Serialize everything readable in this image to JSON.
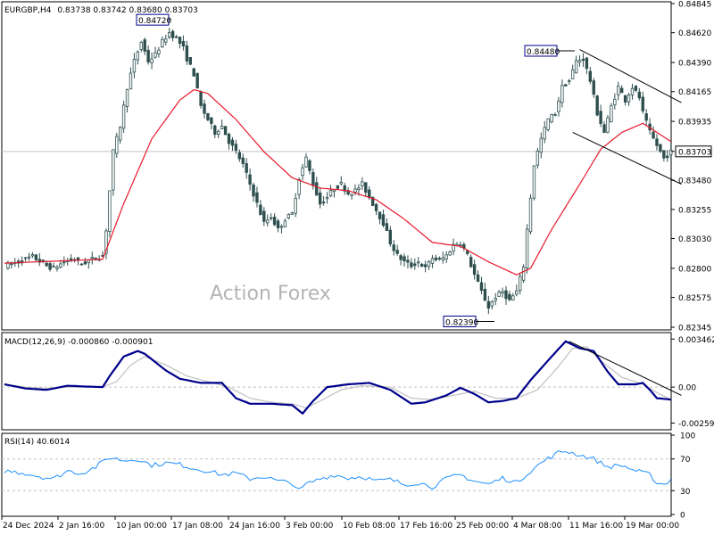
{
  "header": {
    "symbol": "EURGBP,H4",
    "ohlc": "0.83738 0.83742 0.83680 0.83703",
    "macd": "MACD(12,26,9) -0.000860 -0.000901",
    "rsi": "RSI(14) 40.6014"
  },
  "watermark": "Action Forex",
  "colors": {
    "candle": "#2f4f4f",
    "ma": "#e8182b",
    "macd_line": "#00008b",
    "signal_line": "#c0c0c0",
    "rsi_line": "#1e90ff",
    "trendline": "#000000",
    "grid_dashed": "#c0c0c0",
    "current_price_line": "#c0c0c0"
  },
  "annotations": [
    {
      "label": "0.84720",
      "price": 0.8472
    },
    {
      "label": "0.84480",
      "price": 0.8448
    },
    {
      "label": "0.82390",
      "price": 0.8239
    }
  ],
  "chart_data": [
    {
      "type": "candlestick",
      "title": "EURGBP,H4",
      "ylim": [
        0.82345,
        0.84845
      ],
      "y_ticks": [
        "0.84845",
        "0.84620",
        "0.84390",
        "0.84165",
        "0.83935",
        "0.83703",
        "0.83480",
        "0.83255",
        "0.83030",
        "0.82800",
        "0.82575",
        "0.82345"
      ],
      "current_price": 0.83703,
      "current_price_label": "0.83703",
      "x_ticks": [
        "24 Dec 2024",
        "2 Jan 16:00",
        "10 Jan 00:00",
        "17 Jan 08:00",
        "24 Jan 16:00",
        "3 Feb 00:00",
        "10 Feb 08:00",
        "17 Feb 16:00",
        "25 Feb 00:00",
        "4 Mar 08:00",
        "11 Mar 16:00",
        "19 Mar 00:00"
      ],
      "close_anchors": [
        [
          0,
          0.8282
        ],
        [
          4,
          0.8285
        ],
        [
          8,
          0.8289
        ],
        [
          12,
          0.8282
        ],
        [
          14,
          0.828
        ],
        [
          17,
          0.8285
        ],
        [
          20,
          0.8287
        ],
        [
          22,
          0.8283
        ],
        [
          24,
          0.8286
        ],
        [
          26,
          0.8288
        ],
        [
          28,
          0.829
        ],
        [
          29,
          0.831
        ],
        [
          31,
          0.837
        ],
        [
          33,
          0.839
        ],
        [
          35,
          0.842
        ],
        [
          37,
          0.844
        ],
        [
          39,
          0.8455
        ],
        [
          41,
          0.844
        ],
        [
          43,
          0.8445
        ],
        [
          45,
          0.8455
        ],
        [
          47,
          0.8462
        ],
        [
          49,
          0.8458
        ],
        [
          51,
          0.845
        ],
        [
          52,
          0.8442
        ],
        [
          54,
          0.843
        ],
        [
          56,
          0.8405
        ],
        [
          58,
          0.8395
        ],
        [
          60,
          0.8385
        ],
        [
          62,
          0.839
        ],
        [
          64,
          0.8378
        ],
        [
          66,
          0.837
        ],
        [
          68,
          0.836
        ],
        [
          70,
          0.8345
        ],
        [
          72,
          0.833
        ],
        [
          74,
          0.8315
        ],
        [
          76,
          0.832
        ],
        [
          78,
          0.831
        ],
        [
          80,
          0.8318
        ],
        [
          82,
          0.8322
        ],
        [
          84,
          0.835
        ],
        [
          86,
          0.8365
        ],
        [
          88,
          0.8345
        ],
        [
          90,
          0.833
        ],
        [
          92,
          0.8335
        ],
        [
          94,
          0.8342
        ],
        [
          96,
          0.8345
        ],
        [
          98,
          0.8338
        ],
        [
          100,
          0.834
        ],
        [
          102,
          0.8345
        ],
        [
          104,
          0.8335
        ],
        [
          106,
          0.8325
        ],
        [
          108,
          0.8315
        ],
        [
          110,
          0.83
        ],
        [
          112,
          0.829
        ],
        [
          114,
          0.8285
        ],
        [
          116,
          0.8282
        ],
        [
          118,
          0.8285
        ],
        [
          120,
          0.828
        ],
        [
          122,
          0.8288
        ],
        [
          124,
          0.8286
        ],
        [
          126,
          0.829
        ],
        [
          128,
          0.8298
        ],
        [
          130,
          0.83
        ],
        [
          132,
          0.829
        ],
        [
          134,
          0.8275
        ],
        [
          136,
          0.8262
        ],
        [
          138,
          0.825
        ],
        [
          140,
          0.8258
        ],
        [
          142,
          0.8262
        ],
        [
          144,
          0.8255
        ],
        [
          146,
          0.8262
        ],
        [
          148,
          0.8282
        ],
        [
          149,
          0.831
        ],
        [
          151,
          0.836
        ],
        [
          153,
          0.838
        ],
        [
          155,
          0.8395
        ],
        [
          157,
          0.84
        ],
        [
          159,
          0.842
        ],
        [
          161,
          0.8425
        ],
        [
          163,
          0.844
        ],
        [
          165,
          0.8442
        ],
        [
          167,
          0.8425
        ],
        [
          169,
          0.84
        ],
        [
          171,
          0.8385
        ],
        [
          173,
          0.8405
        ],
        [
          175,
          0.842
        ],
        [
          177,
          0.841
        ],
        [
          179,
          0.842
        ],
        [
          181,
          0.8412
        ],
        [
          182,
          0.84
        ],
        [
          184,
          0.8385
        ],
        [
          186,
          0.8375
        ],
        [
          187,
          0.837
        ],
        [
          188,
          0.8365
        ],
        [
          190,
          0.837
        ]
      ],
      "ma_anchors": [
        [
          0,
          0.8284
        ],
        [
          28,
          0.8287
        ],
        [
          34,
          0.833
        ],
        [
          42,
          0.838
        ],
        [
          50,
          0.841
        ],
        [
          54,
          0.8418
        ],
        [
          58,
          0.8415
        ],
        [
          66,
          0.8395
        ],
        [
          74,
          0.837
        ],
        [
          82,
          0.835
        ],
        [
          90,
          0.8342
        ],
        [
          98,
          0.834
        ],
        [
          106,
          0.8333
        ],
        [
          114,
          0.8318
        ],
        [
          122,
          0.83
        ],
        [
          130,
          0.8297
        ],
        [
          138,
          0.8285
        ],
        [
          146,
          0.8275
        ],
        [
          150,
          0.828
        ],
        [
          156,
          0.831
        ],
        [
          164,
          0.8345
        ],
        [
          170,
          0.8372
        ],
        [
          176,
          0.8385
        ],
        [
          182,
          0.8392
        ],
        [
          186,
          0.8385
        ],
        [
          190,
          0.8378
        ]
      ],
      "channel": {
        "upper": [
          [
            164,
            0.8449
          ],
          [
            193,
            0.8408
          ]
        ],
        "lower": [
          [
            162,
            0.8385
          ],
          [
            193,
            0.8345
          ]
        ]
      }
    },
    {
      "type": "line",
      "title": "MACD(12,26,9)",
      "ylim": [
        -0.00295,
        0.0038
      ],
      "y_ticks": [
        "0.003462",
        "0.00",
        "-0.002593"
      ],
      "zero_line": 0,
      "series": [
        {
          "name": "MACD",
          "anchors": [
            [
              0,
              0.0002
            ],
            [
              6,
              -0.0001
            ],
            [
              12,
              -0.0002
            ],
            [
              18,
              0.0001
            ],
            [
              22,
              5e-05
            ],
            [
              28,
              0.0
            ],
            [
              30,
              0.0008
            ],
            [
              34,
              0.0022
            ],
            [
              38,
              0.0026
            ],
            [
              40,
              0.0024
            ],
            [
              46,
              0.0012
            ],
            [
              50,
              0.0006
            ],
            [
              56,
              0.0003
            ],
            [
              62,
              0.0003
            ],
            [
              66,
              -0.0008
            ],
            [
              70,
              -0.0012
            ],
            [
              76,
              -0.0012
            ],
            [
              82,
              -0.0013
            ],
            [
              85,
              -0.0019
            ],
            [
              88,
              -0.001
            ],
            [
              92,
              0.0
            ],
            [
              98,
              0.0002
            ],
            [
              104,
              0.0003
            ],
            [
              110,
              -0.0002
            ],
            [
              116,
              -0.0012
            ],
            [
              120,
              -0.0011
            ],
            [
              126,
              -0.0006
            ],
            [
              130,
              -5e-05
            ],
            [
              134,
              -0.0005
            ],
            [
              138,
              -0.0011
            ],
            [
              142,
              -0.001
            ],
            [
              146,
              -0.0008
            ],
            [
              150,
              0.0005
            ],
            [
              156,
              0.0022
            ],
            [
              160,
              0.0033
            ],
            [
              164,
              0.0028
            ],
            [
              168,
              0.0026
            ],
            [
              172,
              0.0011
            ],
            [
              175,
              0.0002
            ],
            [
              180,
              0.0002
            ],
            [
              182,
              0.0003
            ],
            [
              184,
              -0.0002
            ],
            [
              186,
              -0.0008
            ],
            [
              190,
              -0.0009
            ]
          ]
        },
        {
          "name": "Signal",
          "anchors": [
            [
              0,
              0.0002
            ],
            [
              6,
              0.0
            ],
            [
              12,
              -0.0001
            ],
            [
              18,
              0.0
            ],
            [
              28,
              0.0
            ],
            [
              32,
              0.0004
            ],
            [
              36,
              0.0016
            ],
            [
              40,
              0.0022
            ],
            [
              46,
              0.0016
            ],
            [
              52,
              0.0008
            ],
            [
              58,
              0.0004
            ],
            [
              64,
              0.0
            ],
            [
              70,
              -0.0008
            ],
            [
              76,
              -0.0011
            ],
            [
              82,
              -0.0012
            ],
            [
              86,
              -0.0015
            ],
            [
              90,
              -0.001
            ],
            [
              96,
              -0.0002
            ],
            [
              102,
              0.0001
            ],
            [
              110,
              0.0
            ],
            [
              116,
              -0.0008
            ],
            [
              122,
              -0.0009
            ],
            [
              128,
              -0.0006
            ],
            [
              134,
              -0.0003
            ],
            [
              140,
              -0.0008
            ],
            [
              146,
              -0.0008
            ],
            [
              152,
              -0.0002
            ],
            [
              158,
              0.0015
            ],
            [
              162,
              0.0028
            ],
            [
              166,
              0.0029
            ],
            [
              170,
              0.0019
            ],
            [
              176,
              0.0007
            ],
            [
              182,
              0.0002
            ],
            [
              186,
              -0.0004
            ],
            [
              190,
              -0.0009
            ]
          ]
        }
      ],
      "trendline": [
        [
          161,
          0.0033
        ],
        [
          193,
          -0.0006
        ]
      ]
    },
    {
      "type": "line",
      "title": "RSI(14)",
      "ylim": [
        0,
        100
      ],
      "y_ticks": [
        "100",
        "70",
        "30",
        "0"
      ],
      "levels": [
        70,
        30
      ],
      "series": [
        {
          "name": "RSI(14)",
          "anchors": [
            [
              0,
              55
            ],
            [
              6,
              52
            ],
            [
              10,
              48
            ],
            [
              14,
              45
            ],
            [
              18,
              55
            ],
            [
              22,
              52
            ],
            [
              26,
              60
            ],
            [
              30,
              72
            ],
            [
              34,
              68
            ],
            [
              38,
              70
            ],
            [
              42,
              62
            ],
            [
              46,
              65
            ],
            [
              50,
              63
            ],
            [
              54,
              58
            ],
            [
              58,
              55
            ],
            [
              62,
              50
            ],
            [
              66,
              52
            ],
            [
              70,
              45
            ],
            [
              74,
              48
            ],
            [
              78,
              42
            ],
            [
              82,
              40
            ],
            [
              84,
              30
            ],
            [
              86,
              38
            ],
            [
              90,
              45
            ],
            [
              94,
              50
            ],
            [
              98,
              46
            ],
            [
              102,
              48
            ],
            [
              106,
              42
            ],
            [
              110,
              44
            ],
            [
              114,
              38
            ],
            [
              118,
              40
            ],
            [
              122,
              35
            ],
            [
              126,
              45
            ],
            [
              130,
              50
            ],
            [
              134,
              42
            ],
            [
              138,
              38
            ],
            [
              142,
              46
            ],
            [
              146,
              40
            ],
            [
              150,
              55
            ],
            [
              154,
              68
            ],
            [
              158,
              78
            ],
            [
              160,
              80
            ],
            [
              164,
              75
            ],
            [
              168,
              70
            ],
            [
              172,
              60
            ],
            [
              176,
              62
            ],
            [
              180,
              55
            ],
            [
              184,
              50
            ],
            [
              186,
              40
            ],
            [
              188,
              38
            ],
            [
              190,
              44
            ]
          ]
        }
      ]
    }
  ]
}
